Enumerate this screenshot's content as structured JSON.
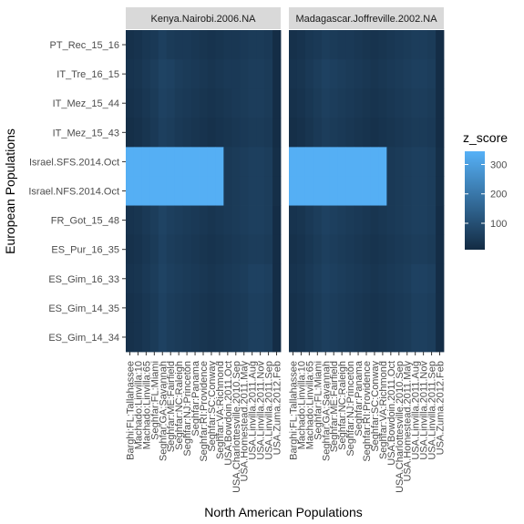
{
  "chart_data": {
    "type": "heatmap",
    "xlabel": "North American Populations",
    "ylabel": "European Populations",
    "fill_variable": "z_score",
    "legend_position": "right",
    "legend_ticks": [
      100,
      200,
      300
    ],
    "zlim": [
      10,
      345
    ],
    "color_low": "#132B43",
    "color_high": "#56B1F7",
    "panel_background": "#ebebeb",
    "strip_background": "#d9d9d9",
    "y_categories": [
      "PT_Rec_15_16",
      "IT_Tre_16_15",
      "IT_Mez_15_44",
      "IT_Mez_15_43",
      "Israel.SFS.2014.Oct",
      "Israel.NFS.2014.Oct",
      "FR_Got_15_48",
      "ES_Pur_16_35",
      "ES_Gim_16_33",
      "ES_Gim_14_35",
      "ES_Gim_14_34"
    ],
    "x_categories": [
      "Barghi:FL:Tallahassee",
      "Machado:Linvilla:10",
      "Machado:Linvilla:65",
      "Seghfar:FL:Miami",
      "Seghfar:GA:Savannah",
      "Seghfar:ME:Fairfield",
      "Seghfar:NC:Raleigh",
      "Seghfar:NJ:Princeton",
      "Seghfar:Panama",
      "Seghfar:RI:Providence",
      "Seghfar:SC:Conway",
      "Seghfar:VA:Richmond",
      "USA.Bowdoin.2011.Oct",
      "USA.Charlottesville.2010.Sep",
      "USA.Homestead.2011.May",
      "USA.Linvilla.2011.Aug",
      "USA.Linvilla.2011.Nov",
      "USA.Linvilla.2011.Sep",
      "USA.Zuma.2012.Feb"
    ],
    "panels": [
      {
        "title": "Kenya.Nairobi.2006.NA",
        "z": [
          [
            25,
            30,
            40,
            45,
            60,
            50,
            45,
            45,
            40,
            35,
            30,
            35,
            40,
            40,
            45,
            50,
            50,
            45,
            15
          ],
          [
            30,
            35,
            45,
            55,
            70,
            65,
            55,
            50,
            45,
            40,
            35,
            40,
            45,
            45,
            50,
            55,
            55,
            50,
            15
          ],
          [
            25,
            30,
            40,
            50,
            65,
            60,
            50,
            45,
            40,
            35,
            30,
            35,
            40,
            45,
            50,
            55,
            55,
            50,
            15
          ],
          [
            20,
            25,
            35,
            45,
            60,
            55,
            45,
            40,
            35,
            30,
            25,
            30,
            35,
            40,
            45,
            50,
            50,
            45,
            15
          ],
          [
            340,
            340,
            340,
            340,
            340,
            340,
            340,
            340,
            340,
            340,
            340,
            340,
            45,
            50,
            55,
            60,
            60,
            55,
            20
          ],
          [
            340,
            340,
            340,
            340,
            340,
            340,
            340,
            340,
            340,
            340,
            340,
            340,
            45,
            50,
            55,
            60,
            60,
            55,
            20
          ],
          [
            30,
            35,
            45,
            55,
            70,
            60,
            55,
            50,
            45,
            40,
            35,
            40,
            45,
            50,
            55,
            60,
            60,
            55,
            15
          ],
          [
            25,
            30,
            40,
            50,
            65,
            55,
            50,
            45,
            40,
            35,
            30,
            35,
            40,
            45,
            50,
            55,
            55,
            50,
            15
          ],
          [
            30,
            35,
            45,
            55,
            70,
            60,
            55,
            50,
            45,
            40,
            35,
            40,
            45,
            50,
            55,
            65,
            65,
            60,
            15
          ],
          [
            25,
            30,
            40,
            50,
            65,
            55,
            50,
            45,
            40,
            35,
            30,
            35,
            40,
            45,
            50,
            60,
            60,
            55,
            15
          ],
          [
            25,
            30,
            40,
            50,
            65,
            55,
            50,
            45,
            40,
            35,
            30,
            35,
            40,
            45,
            50,
            60,
            60,
            55,
            15
          ]
        ]
      },
      {
        "title": "Madagascar.Joffreville.2002.NA",
        "z": [
          [
            25,
            30,
            40,
            45,
            55,
            50,
            45,
            45,
            40,
            35,
            30,
            35,
            40,
            45,
            50,
            55,
            55,
            50,
            15
          ],
          [
            30,
            35,
            45,
            55,
            65,
            60,
            55,
            50,
            45,
            40,
            35,
            40,
            45,
            50,
            55,
            60,
            60,
            55,
            15
          ],
          [
            25,
            30,
            40,
            50,
            60,
            55,
            50,
            45,
            40,
            35,
            30,
            35,
            40,
            45,
            50,
            55,
            55,
            50,
            15
          ],
          [
            20,
            25,
            35,
            45,
            55,
            50,
            45,
            40,
            35,
            30,
            25,
            30,
            35,
            40,
            45,
            50,
            50,
            45,
            15
          ],
          [
            340,
            340,
            340,
            340,
            340,
            340,
            340,
            340,
            340,
            340,
            340,
            340,
            45,
            50,
            55,
            60,
            60,
            55,
            20
          ],
          [
            340,
            340,
            340,
            340,
            340,
            340,
            340,
            340,
            340,
            340,
            340,
            340,
            45,
            50,
            55,
            60,
            60,
            55,
            20
          ],
          [
            30,
            35,
            45,
            55,
            65,
            60,
            55,
            50,
            45,
            40,
            35,
            40,
            45,
            50,
            55,
            60,
            60,
            55,
            15
          ],
          [
            25,
            30,
            40,
            50,
            60,
            55,
            50,
            45,
            40,
            35,
            30,
            35,
            40,
            45,
            50,
            55,
            55,
            50,
            15
          ],
          [
            30,
            35,
            45,
            55,
            65,
            60,
            55,
            50,
            45,
            40,
            35,
            40,
            45,
            50,
            55,
            65,
            65,
            60,
            15
          ],
          [
            25,
            30,
            40,
            50,
            60,
            55,
            50,
            45,
            40,
            35,
            30,
            35,
            40,
            45,
            50,
            60,
            60,
            55,
            15
          ],
          [
            25,
            30,
            40,
            50,
            60,
            55,
            50,
            45,
            40,
            35,
            30,
            35,
            40,
            45,
            50,
            60,
            60,
            55,
            15
          ]
        ]
      }
    ]
  }
}
